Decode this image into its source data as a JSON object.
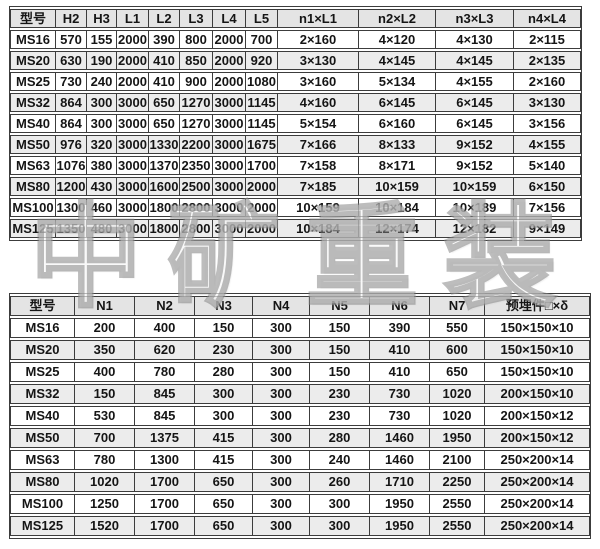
{
  "watermark": {
    "text": "中矿重装",
    "color": "#bdbdbd"
  },
  "tables": [
    {
      "title": "upper-dimension-table",
      "headers": [
        "型号",
        "H2",
        "H3",
        "L1",
        "L2",
        "L3",
        "L4",
        "L5",
        "n1×L1",
        "n2×L2",
        "n3×L3",
        "n4×L4"
      ],
      "rows": [
        [
          "MS16",
          "570",
          "155",
          "2000",
          "390",
          "800",
          "2000",
          "700",
          "2×160",
          "4×120",
          "4×130",
          "2×115"
        ],
        [
          "MS20",
          "630",
          "190",
          "2000",
          "410",
          "850",
          "2000",
          "920",
          "3×130",
          "4×145",
          "4×145",
          "2×135"
        ],
        [
          "MS25",
          "730",
          "240",
          "2000",
          "410",
          "900",
          "2000",
          "1080",
          "3×160",
          "5×134",
          "4×155",
          "2×160"
        ],
        [
          "MS32",
          "864",
          "300",
          "3000",
          "650",
          "1270",
          "3000",
          "1145",
          "4×160",
          "6×145",
          "6×145",
          "3×130"
        ],
        [
          "MS40",
          "864",
          "300",
          "3000",
          "650",
          "1270",
          "3000",
          "1145",
          "5×154",
          "6×160",
          "6×145",
          "3×156"
        ],
        [
          "MS50",
          "976",
          "320",
          "3000",
          "1330",
          "2200",
          "3000",
          "1675",
          "7×166",
          "8×133",
          "9×152",
          "4×155"
        ],
        [
          "MS63",
          "1076",
          "380",
          "3000",
          "1370",
          "2350",
          "3000",
          "1700",
          "7×158",
          "8×171",
          "9×152",
          "5×140"
        ],
        [
          "MS80",
          "1200",
          "430",
          "3000",
          "1600",
          "2500",
          "3000",
          "2000",
          "7×185",
          "10×159",
          "10×159",
          "6×150"
        ],
        [
          "MS100",
          "1300",
          "460",
          "3000",
          "1800",
          "2800",
          "3000",
          "2000",
          "10×159",
          "10×184",
          "10×189",
          "7×156"
        ],
        [
          "MS125",
          "1350",
          "480",
          "3000",
          "1800",
          "2800",
          "3000",
          "2000",
          "10×184",
          "12×174",
          "12×182",
          "9×149"
        ]
      ]
    },
    {
      "title": "lower-dimension-table",
      "headers": [
        "型号",
        "N1",
        "N2",
        "N3",
        "N4",
        "N5",
        "N6",
        "N7",
        "预埋件□×δ"
      ],
      "rows": [
        [
          "MS16",
          "200",
          "400",
          "150",
          "300",
          "150",
          "390",
          "550",
          "150×150×10"
        ],
        [
          "MS20",
          "350",
          "620",
          "230",
          "300",
          "150",
          "410",
          "600",
          "150×150×10"
        ],
        [
          "MS25",
          "400",
          "780",
          "280",
          "300",
          "150",
          "410",
          "650",
          "150×150×10"
        ],
        [
          "MS32",
          "150",
          "845",
          "300",
          "300",
          "230",
          "730",
          "1020",
          "200×150×10"
        ],
        [
          "MS40",
          "530",
          "845",
          "300",
          "300",
          "230",
          "730",
          "1020",
          "200×150×12"
        ],
        [
          "MS50",
          "700",
          "1375",
          "415",
          "300",
          "280",
          "1460",
          "1950",
          "200×150×12"
        ],
        [
          "MS63",
          "780",
          "1300",
          "415",
          "300",
          "240",
          "1460",
          "2100",
          "250×200×14"
        ],
        [
          "MS80",
          "1020",
          "1700",
          "650",
          "300",
          "260",
          "1710",
          "2250",
          "250×200×14"
        ],
        [
          "MS100",
          "1250",
          "1700",
          "650",
          "300",
          "300",
          "1950",
          "2550",
          "250×200×14"
        ],
        [
          "MS125",
          "1520",
          "1700",
          "650",
          "300",
          "300",
          "1950",
          "2550",
          "250×200×14"
        ]
      ]
    }
  ]
}
